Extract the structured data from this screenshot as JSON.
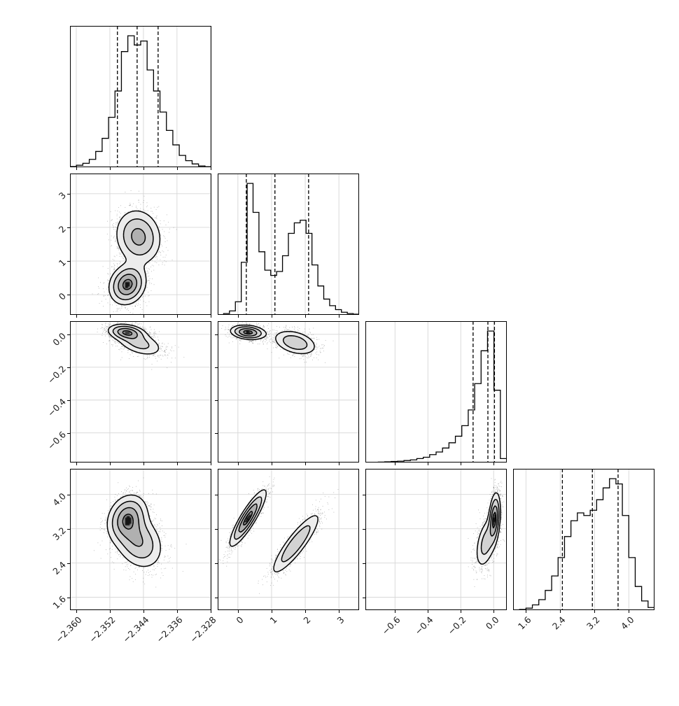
{
  "figure": {
    "background": "#ffffff",
    "axis_color": "#000000",
    "grid_color": "#d6d6d6",
    "scatter_color": "rgba(0,0,0,0.30)",
    "hist_line_color": "#000000",
    "quantile_line_color": "#000000",
    "contour_line_color": "#000000",
    "tick_label_color": "#1a1a1a",
    "band_colors": [
      "#ececec",
      "#d2d2d2",
      "#b0b0b0",
      "#909090",
      "#141414"
    ],
    "contour_levels": [
      0.1353,
      0.3247,
      0.6065,
      0.8825,
      0.95
    ]
  },
  "chart_data": {
    "type": "scatter",
    "variant": "corner-plot-posterior-4-parameters",
    "title": "",
    "grid": true,
    "legend": false,
    "quantile_lines_style": "dashed",
    "parameters": [
      {
        "id": "param1",
        "lim": [
          -2.3615,
          -2.3278
        ],
        "tick_values": [
          -2.36,
          -2.352,
          -2.344,
          -2.336,
          -2.328
        ],
        "tick_labels": [
          "−2.360",
          "−2.352",
          "−2.344",
          "−2.336",
          "−2.328"
        ],
        "quantiles": [
          -2.3502,
          -2.3455,
          -2.3405
        ],
        "hist_counts": [
          0.5,
          1.5,
          3,
          6,
          12,
          22,
          38,
          58,
          88,
          100,
          93,
          96,
          74,
          58,
          42,
          28,
          17,
          9,
          5,
          2.5,
          1,
          0.4
        ]
      },
      {
        "id": "param2",
        "lim": [
          -0.6,
          3.6
        ],
        "tick_values": [
          0,
          1,
          2,
          3
        ],
        "tick_labels": [
          "0",
          "1",
          "2",
          "3"
        ],
        "quantiles": [
          0.25,
          1.1,
          2.1
        ],
        "hist_counts": [
          0,
          1,
          3,
          10,
          40,
          100,
          78,
          48,
          34,
          30,
          33,
          45,
          62,
          70,
          72,
          62,
          38,
          22,
          12,
          7,
          4,
          2,
          1,
          0.5
        ]
      },
      {
        "id": "param3",
        "lim": [
          -0.78,
          0.08
        ],
        "tick_values": [
          -0.6,
          -0.4,
          -0.2,
          0.0
        ],
        "tick_labels": [
          "−0.6",
          "−0.4",
          "−0.2",
          "0.0"
        ],
        "quantiles": [
          -0.125,
          -0.035,
          0.005
        ],
        "hist_counts": [
          0,
          0,
          0.3,
          0.5,
          0.8,
          1,
          1.5,
          2,
          3,
          4,
          6,
          8,
          11,
          15,
          20,
          28,
          40,
          60,
          85,
          100,
          55,
          3
        ]
      },
      {
        "id": "param4",
        "lim": [
          1.3,
          4.6
        ],
        "tick_values": [
          1.6,
          2.4,
          3.2,
          4.0
        ],
        "tick_labels": [
          "1.6",
          "2.4",
          "3.2",
          "4.0"
        ],
        "quantiles": [
          2.45,
          3.15,
          3.75
        ],
        "hist_counts": [
          0,
          0.5,
          1.5,
          4,
          8,
          15,
          26,
          40,
          56,
          68,
          74,
          72,
          76,
          84,
          93,
          100,
          96,
          72,
          40,
          18,
          7,
          2
        ]
      }
    ],
    "panels_diagonal": [
      {
        "row": 0,
        "col": 0,
        "param": "param1"
      },
      {
        "row": 1,
        "col": 1,
        "param": "param2"
      },
      {
        "row": 2,
        "col": 2,
        "param": "param3"
      },
      {
        "row": 3,
        "col": 3,
        "param": "param4"
      }
    ],
    "panels_2d": [
      {
        "row": 1,
        "col": 0,
        "x": "param1",
        "y": "param2",
        "modes": [
          {
            "cx": -2.3478,
            "cy": 0.3,
            "sx": 0.0022,
            "sy": 0.3,
            "rho": 0.15,
            "w": 1.0
          },
          {
            "cx": -2.3452,
            "cy": 1.72,
            "sx": 0.0028,
            "sy": 0.42,
            "rho": -0.1,
            "w": 0.72
          }
        ]
      },
      {
        "row": 2,
        "col": 0,
        "x": "param1",
        "y": "param3",
        "modes": [
          {
            "cx": -2.348,
            "cy": 0.012,
            "sx": 0.0022,
            "sy": 0.025,
            "rho": -0.25,
            "w": 1.0
          },
          {
            "cx": -2.345,
            "cy": -0.055,
            "sx": 0.003,
            "sy": 0.042,
            "rho": -0.45,
            "w": 0.5
          }
        ]
      },
      {
        "row": 2,
        "col": 1,
        "x": "param2",
        "y": "param3",
        "modes": [
          {
            "cx": 0.3,
            "cy": 0.012,
            "sx": 0.26,
            "sy": 0.022,
            "rho": -0.2,
            "w": 1.0
          },
          {
            "cx": 1.7,
            "cy": -0.05,
            "sx": 0.34,
            "sy": 0.04,
            "rho": -0.35,
            "w": 0.55
          }
        ]
      },
      {
        "row": 3,
        "col": 0,
        "x": "param1",
        "y": "param4",
        "modes": [
          {
            "cx": -2.3478,
            "cy": 3.45,
            "sx": 0.0024,
            "sy": 0.28,
            "rho": 0.2,
            "w": 1.0
          },
          {
            "cx": -2.3452,
            "cy": 2.9,
            "sx": 0.003,
            "sy": 0.33,
            "rho": -0.25,
            "w": 0.75
          }
        ]
      },
      {
        "row": 3,
        "col": 1,
        "x": "param2",
        "y": "param4",
        "modes": [
          {
            "cx": 0.3,
            "cy": 3.45,
            "sx": 0.27,
            "sy": 0.33,
            "rho": 0.88,
            "w": 1.0
          },
          {
            "cx": 1.72,
            "cy": 2.85,
            "sx": 0.38,
            "sy": 0.38,
            "rho": 0.88,
            "w": 0.6
          }
        ]
      },
      {
        "row": 3,
        "col": 2,
        "x": "param3",
        "y": "param4",
        "modes": [
          {
            "cx": 0.005,
            "cy": 3.45,
            "sx": 0.018,
            "sy": 0.3,
            "rho": 0.3,
            "w": 1.0
          },
          {
            "cx": -0.045,
            "cy": 2.88,
            "sx": 0.035,
            "sy": 0.32,
            "rho": 0.45,
            "w": 0.5
          }
        ]
      }
    ]
  }
}
